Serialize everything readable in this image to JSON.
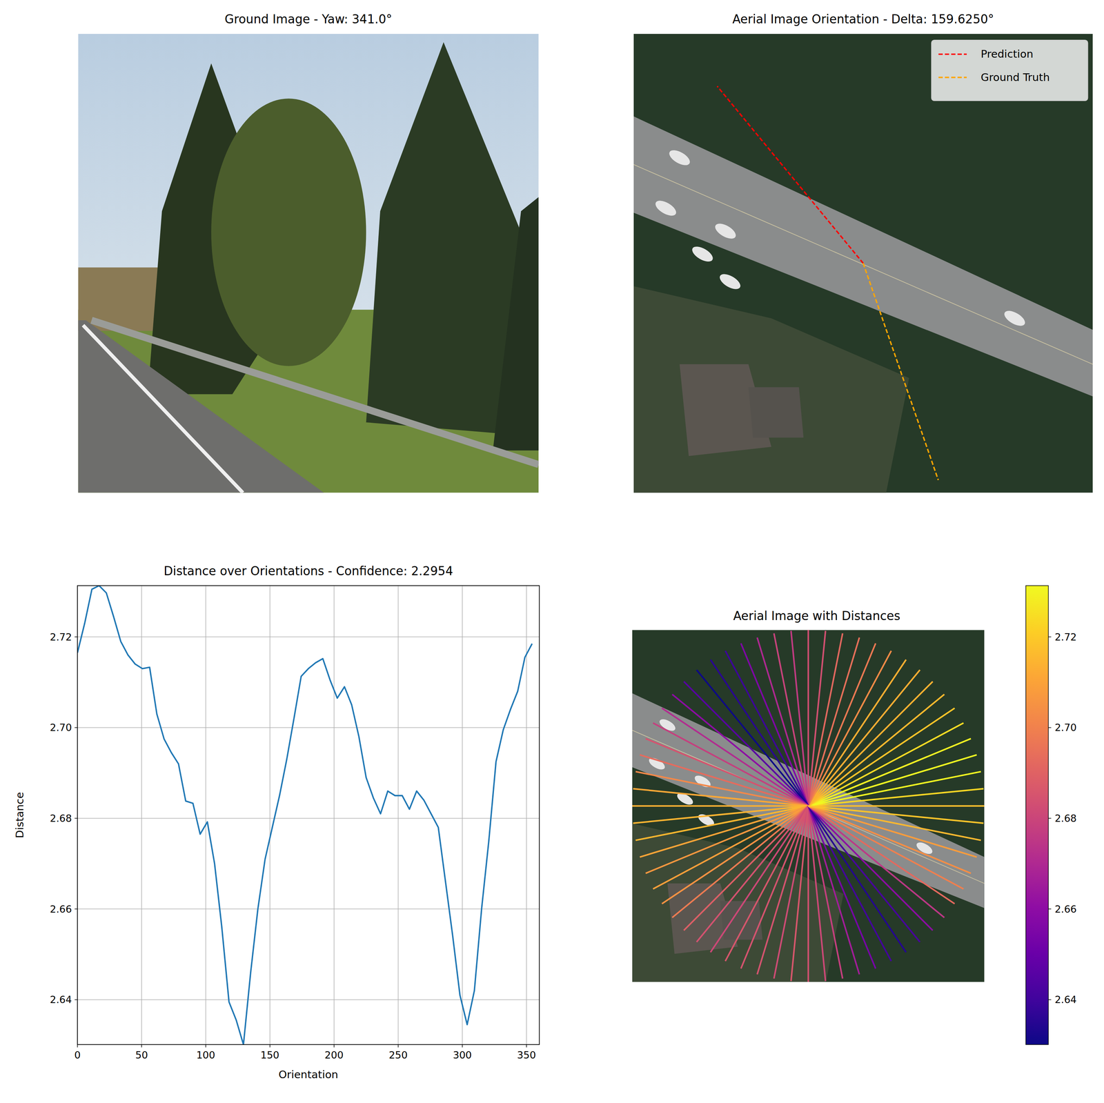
{
  "chart_data": [
    {
      "type": "image",
      "title": "Ground Image - Yaw: 341.0°"
    },
    {
      "type": "orientation",
      "title": "Aerial Image Orientation - Delta: 159.6250°",
      "series": [
        {
          "name": "Prediction",
          "color": "#ff0000",
          "line_style": "dashed",
          "values": [
            320.5
          ]
        },
        {
          "name": "Ground Truth",
          "color": "#ffa500",
          "line_style": "dashed",
          "values": [
            160.9
          ]
        }
      ],
      "legend": "upper right",
      "tick_labels": false
    },
    {
      "type": "line",
      "title": "Distance over Orientations - Confidence: 2.2954",
      "xlabel": "Orientation",
      "ylabel": "Distance",
      "color": "#1f77b4",
      "grid": true,
      "x": [
        0,
        5.625,
        11.25,
        16.875,
        22.5,
        28.125,
        33.75,
        39.375,
        45,
        50.625,
        56.25,
        61.875,
        67.5,
        73.125,
        78.75,
        84.375,
        90,
        95.625,
        101.25,
        106.875,
        112.5,
        118.125,
        123.75,
        129.375,
        135,
        140.625,
        146.25,
        151.875,
        157.5,
        163.125,
        168.75,
        174.375,
        180,
        185.625,
        191.25,
        196.875,
        202.5,
        208.125,
        213.75,
        219.375,
        225,
        230.625,
        236.25,
        241.875,
        247.5,
        253.125,
        258.75,
        264.375,
        270,
        275.625,
        281.25,
        286.875,
        292.5,
        298.125,
        303.75,
        309.375,
        315,
        320.625,
        326.25,
        331.875,
        337.5,
        343.125,
        348.75,
        354.375
      ],
      "values": [
        2.7165,
        2.723,
        2.7305,
        2.7313,
        2.7297,
        2.7245,
        2.719,
        2.716,
        2.714,
        2.713,
        2.7133,
        2.703,
        2.6975,
        2.6945,
        2.692,
        2.6838,
        2.6833,
        2.6765,
        2.6792,
        2.67,
        2.656,
        2.6395,
        2.6355,
        2.6301,
        2.646,
        2.66,
        2.671,
        2.678,
        2.685,
        2.693,
        2.702,
        2.7113,
        2.713,
        2.7143,
        2.7152,
        2.7105,
        2.7065,
        2.709,
        2.705,
        2.698,
        2.689,
        2.6845,
        2.681,
        2.686,
        2.685,
        2.685,
        2.682,
        2.686,
        2.684,
        2.681,
        2.678,
        2.666,
        2.654,
        2.641,
        2.6345,
        2.642,
        2.66,
        2.675,
        2.6925,
        2.6995,
        2.704,
        2.708,
        2.7155,
        2.7185
      ],
      "xlim": [
        0,
        360
      ],
      "ylim": [
        2.6301,
        2.7313
      ],
      "xticks": [
        0,
        50,
        100,
        150,
        200,
        250,
        300,
        350
      ],
      "yticks": [
        2.64,
        2.66,
        2.68,
        {
          "value": 2.7,
          "label": "2.70"
        },
        2.72
      ]
    },
    {
      "type": "radial",
      "title": "Aerial Image with Distances",
      "tick_labels": false,
      "x": [
        0,
        5.625,
        11.25,
        16.875,
        22.5,
        28.125,
        33.75,
        39.375,
        45,
        50.625,
        56.25,
        61.875,
        67.5,
        73.125,
        78.75,
        84.375,
        90,
        95.625,
        101.25,
        106.875,
        112.5,
        118.125,
        123.75,
        129.375,
        135,
        140.625,
        146.25,
        151.875,
        157.5,
        163.125,
        168.75,
        174.375,
        180,
        185.625,
        191.25,
        196.875,
        202.5,
        208.125,
        213.75,
        219.375,
        225,
        230.625,
        236.25,
        241.875,
        247.5,
        253.125,
        258.75,
        264.375,
        270,
        275.625,
        281.25,
        286.875,
        292.5,
        298.125,
        303.75,
        309.375,
        315,
        320.625,
        326.25,
        331.875,
        337.5,
        343.125,
        348.75,
        354.375
      ],
      "values": [
        2.7165,
        2.723,
        2.7305,
        2.7313,
        2.7297,
        2.7245,
        2.719,
        2.716,
        2.714,
        2.713,
        2.7133,
        2.703,
        2.6975,
        2.6945,
        2.692,
        2.6838,
        2.6833,
        2.6765,
        2.6792,
        2.67,
        2.656,
        2.6395,
        2.6355,
        2.6301,
        2.646,
        2.66,
        2.671,
        2.678,
        2.685,
        2.693,
        2.702,
        2.7113,
        2.713,
        2.7143,
        2.7152,
        2.7105,
        2.7065,
        2.709,
        2.705,
        2.698,
        2.689,
        2.6845,
        2.681,
        2.686,
        2.685,
        2.685,
        2.682,
        2.686,
        2.684,
        2.681,
        2.678,
        2.666,
        2.654,
        2.641,
        2.6345,
        2.642,
        2.66,
        2.675,
        2.6925,
        2.6995,
        2.704,
        2.708,
        2.7155,
        2.7185
      ],
      "colorbar": {
        "range": [
          2.6301,
          2.7313
        ],
        "ticks": [
          2.64,
          2.66,
          2.68,
          {
            "value": 2.7,
            "label": "2.70"
          },
          2.72
        ]
      }
    }
  ]
}
